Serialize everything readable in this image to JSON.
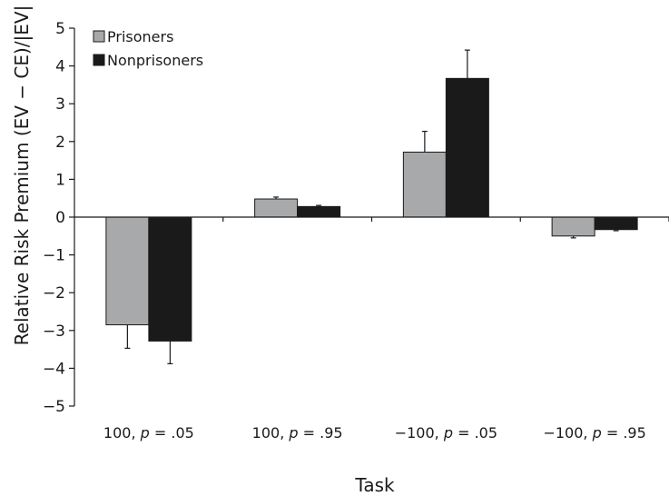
{
  "chart_data": {
    "type": "bar",
    "title": "",
    "xlabel": "Task",
    "ylabel": "Relative Risk Premium (EV − CE)/|EV|",
    "ylim": [
      -5,
      5
    ],
    "yticks": [
      5,
      4,
      3,
      2,
      1,
      0,
      -1,
      -2,
      -3,
      -4,
      -5
    ],
    "ytick_labels": [
      "5",
      "4",
      "3",
      "2",
      "1",
      "0",
      "−1",
      "−2",
      "−3",
      "−4",
      "−5"
    ],
    "grid": false,
    "legend_position": "top-left",
    "categories": [
      {
        "parts": [
          "100, ",
          "p",
          " = .05"
        ]
      },
      {
        "parts": [
          "100, ",
          "p",
          " = .95"
        ]
      },
      {
        "parts": [
          "−100, ",
          "p",
          " = .05"
        ]
      },
      {
        "parts": [
          "−100, ",
          "p",
          " = .95"
        ]
      }
    ],
    "series": [
      {
        "name": "Prisoners",
        "color": "#a8a9ab",
        "values": [
          -2.85,
          0.48,
          1.72,
          -0.5
        ],
        "errors": [
          0.62,
          0.05,
          0.55,
          0.05
        ]
      },
      {
        "name": "Nonprisoners",
        "color": "#1a1a1a",
        "values": [
          -3.28,
          0.28,
          3.67,
          -0.33
        ],
        "errors": [
          0.6,
          0.03,
          0.75,
          0.03
        ]
      }
    ]
  }
}
